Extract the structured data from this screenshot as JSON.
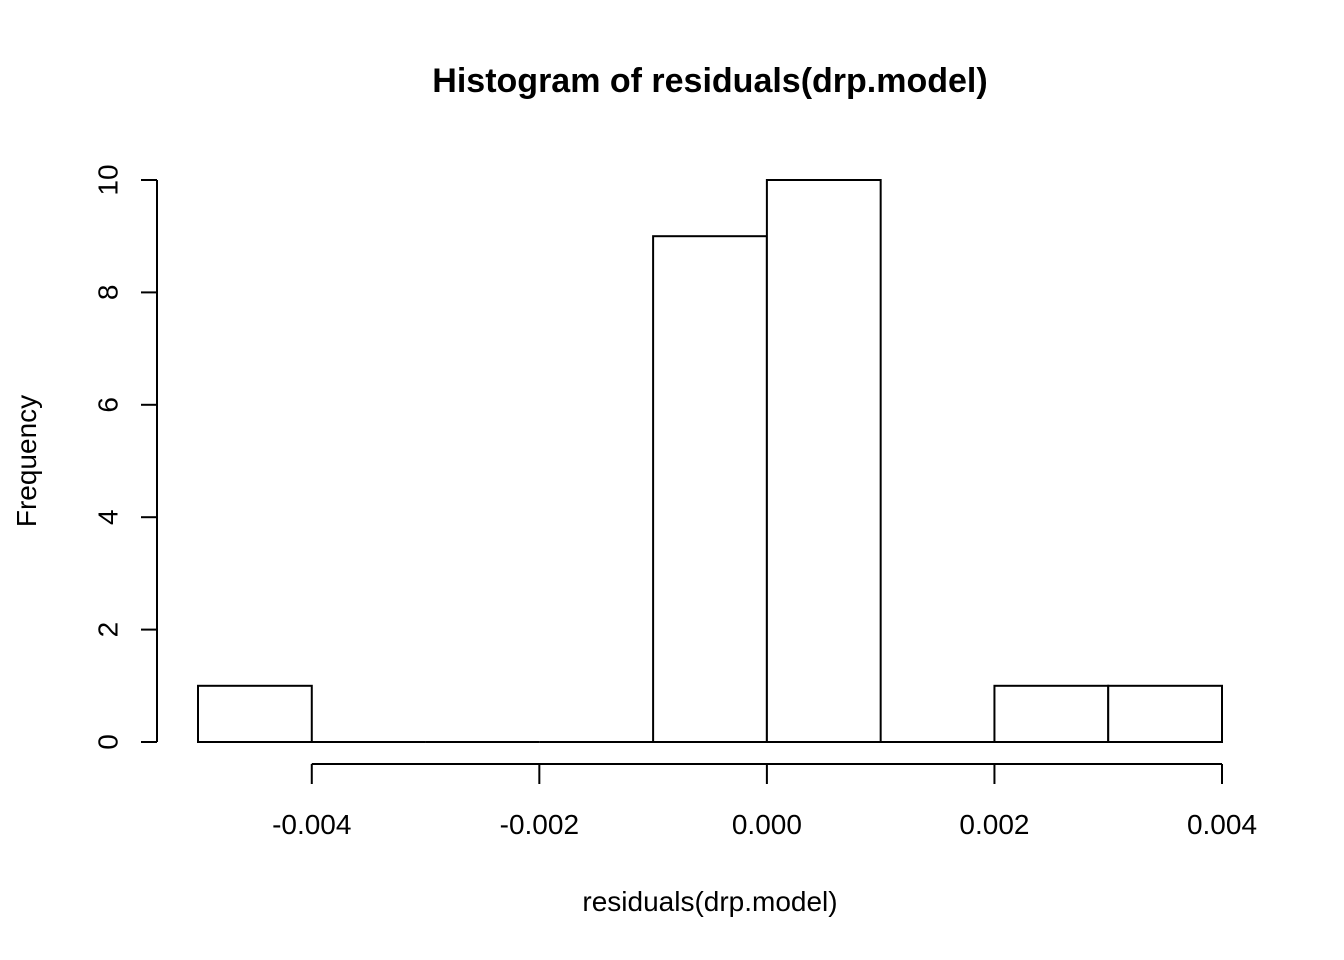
{
  "chart_data": {
    "type": "bar",
    "title": "Histogram of residuals(drp.model)",
    "xlabel": "residuals(drp.model)",
    "ylabel": "Frequency",
    "bins": [
      {
        "x0": -0.005,
        "x1": -0.004,
        "count": 1
      },
      {
        "x0": -0.004,
        "x1": -0.003,
        "count": 0
      },
      {
        "x0": -0.003,
        "x1": -0.002,
        "count": 0
      },
      {
        "x0": -0.002,
        "x1": -0.001,
        "count": 0
      },
      {
        "x0": -0.001,
        "x1": 0.0,
        "count": 9
      },
      {
        "x0": 0.0,
        "x1": 0.001,
        "count": 10
      },
      {
        "x0": 0.001,
        "x1": 0.002,
        "count": 0
      },
      {
        "x0": 0.002,
        "x1": 0.003,
        "count": 1
      },
      {
        "x0": 0.003,
        "x1": 0.004,
        "count": 1
      }
    ],
    "x_ticks": [
      -0.004,
      -0.002,
      0.0,
      0.002,
      0.004
    ],
    "x_tick_labels": [
      "-0.004",
      "-0.002",
      "0.000",
      "0.002",
      "0.004"
    ],
    "y_ticks": [
      0,
      2,
      4,
      6,
      8,
      10
    ],
    "y_tick_labels": [
      "0",
      "2",
      "4",
      "6",
      "8",
      "10"
    ],
    "xlim": [
      -0.005,
      0.004
    ],
    "ylim": [
      0,
      10
    ],
    "grid": false,
    "bar_fill": "#ffffff",
    "bar_stroke": "#000000"
  }
}
